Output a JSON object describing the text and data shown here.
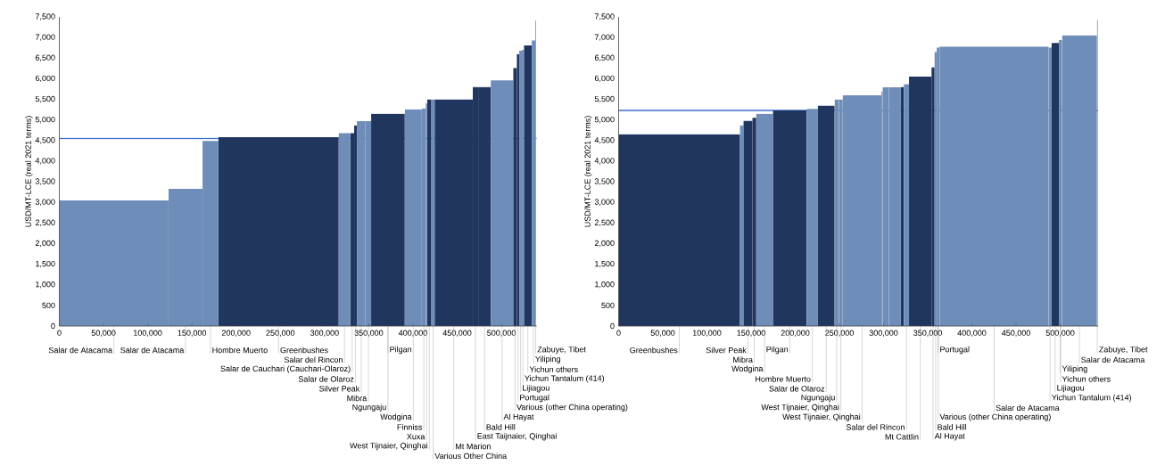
{
  "chart_data": [
    {
      "type": "bar",
      "ylabel": "USD/MT-LCE (real 2021 terms)",
      "x": [
        61750,
        142750,
        171000,
        248000,
        322500,
        331250,
        335050,
        341450,
        349500,
        371700,
        400350,
        412250,
        415250,
        418500,
        422800,
        446150,
        470750,
        480900,
        500700,
        515400,
        518800,
        521700,
        524350,
        529950,
        536400,
        538800
      ],
      "values": [
        3050,
        3330,
        4490,
        4580,
        4680,
        4680,
        4870,
        4970,
        4970,
        5150,
        5260,
        5280,
        5400,
        5500,
        5500,
        5500,
        5800,
        5800,
        5960,
        6260,
        6600,
        6680,
        6700,
        6810,
        6930,
        7410
      ],
      "colors": [
        "#6f8db9",
        "#6f8db9",
        "#6f8db9",
        "#20365f",
        "#6f8db9",
        "#20365f",
        "#20365f",
        "#6f8db9",
        "#6f8db9",
        "#20365f",
        "#6f8db9",
        "#6f8db9",
        "#6f8db9",
        "#20365f",
        "#6f8db9",
        "#20365f",
        "#20365f",
        "#20365f",
        "#6f8db9",
        "#20365f",
        "#20365f",
        "#6f8db9",
        "#6f8db9",
        "#20365f",
        "#6f8db9",
        "#6f8db9"
      ],
      "xlim": [
        0,
        540000
      ],
      "ylim": [
        0,
        7500
      ],
      "xticks": [
        0,
        {
          "value": 50000,
          "label": "50,000"
        },
        {
          "value": 100000,
          "label": "100,000"
        },
        {
          "value": 150000,
          "label": "150,000"
        },
        {
          "value": 200000,
          "label": "200,000"
        },
        {
          "value": 250000,
          "label": "250,000"
        },
        {
          "value": 300000,
          "label": "300,000"
        },
        {
          "value": 350000,
          "label": "350,000"
        },
        {
          "value": 400000,
          "label": "400,000"
        },
        {
          "value": 450000,
          "label": "450,000"
        },
        {
          "value": 500000,
          "label": "500,000"
        }
      ],
      "yticks": [
        0,
        500,
        {
          "value": 1000,
          "label": "1,000"
        },
        {
          "value": 1500,
          "label": "1,500"
        },
        {
          "value": 2000,
          "label": "2,000"
        },
        {
          "value": 2500,
          "label": "2,500"
        },
        {
          "value": 3000,
          "label": "3,000"
        },
        {
          "value": 3500,
          "label": "3,500"
        },
        {
          "value": 4000,
          "label": "4,000"
        },
        {
          "value": 4500,
          "label": "4,500"
        },
        {
          "value": 5000,
          "label": "5,000"
        },
        {
          "value": 5500,
          "label": "5,500"
        },
        {
          "value": 6000,
          "label": "6,000"
        },
        {
          "value": 6500,
          "label": "6,500"
        },
        {
          "value": 7000,
          "label": "7,000"
        },
        {
          "value": 7500,
          "label": "7,500"
        }
      ],
      "ref_lines": [
        {
          "axis": "y",
          "value": 4550,
          "color": "#3a6cc9"
        }
      ],
      "annotations": [
        {
          "text": "Salar de Atacama",
          "x": 61750,
          "y": 0
        },
        {
          "text": "Salar de Atacama",
          "x": 142750,
          "y": 0
        },
        {
          "text": "Hombre Muerto",
          "x": 171000,
          "y": 0
        },
        {
          "text": "Greenbushes",
          "x": 248000,
          "y": 0
        },
        {
          "text": "Salar del Rincon",
          "x": 322500,
          "y": 0
        },
        {
          "text": "Salar de Cauchari (Cauchari-Olaroz)",
          "x": 331250,
          "y": 0
        },
        {
          "text": "Salar de Olaroz",
          "x": 335050,
          "y": 0
        },
        {
          "text": "Silver Peak",
          "x": 341450,
          "y": 0
        },
        {
          "text": "Mibra",
          "x": 349500,
          "y": 0
        },
        {
          "text": "Pilgan",
          "x": 371700,
          "y": 0
        },
        {
          "text": "Ngungaju",
          "x": 371700,
          "y": 0
        },
        {
          "text": "Wodgina",
          "x": 400350,
          "y": 0
        },
        {
          "text": "Finniss",
          "x": 412250,
          "y": 0
        },
        {
          "text": "Xuxa",
          "x": 415250,
          "y": 0
        },
        {
          "text": "West Tijnaier, Qinghai",
          "x": 418500,
          "y": 0
        },
        {
          "text": "Various Other China",
          "x": 422800,
          "y": 0
        },
        {
          "text": "Mt Marion",
          "x": 446150,
          "y": 0
        },
        {
          "text": "East Taijnaier, Qinghai",
          "x": 470750,
          "y": 0
        },
        {
          "text": "Bald Hill",
          "x": 480900,
          "y": 0
        },
        {
          "text": "Al Hayat",
          "x": 500700,
          "y": 0
        },
        {
          "text": "Various (other China operating)",
          "x": 515400,
          "y": 0
        },
        {
          "text": "Portugal",
          "x": 518800,
          "y": 0
        },
        {
          "text": "Lijiagou",
          "x": 521700,
          "y": 0
        },
        {
          "text": "Yichun Tantalum (414)",
          "x": 524350,
          "y": 0
        },
        {
          "text": "Yichun others",
          "x": 529950,
          "y": 0
        },
        {
          "text": "Yiliping",
          "x": 536400,
          "y": 0
        },
        {
          "text": "Zabuye, Tibet",
          "x": 538800,
          "y": 0
        }
      ]
    },
    {
      "type": "bar",
      "ylabel": "USD/MT-LCE (real 2021 terms)",
      "x": [
        68700,
        139400,
        146450,
        153650,
        165250,
        193850,
        219300,
        235050,
        246950,
        251550,
        275650,
        298300,
        302500,
        312800,
        321300,
        325900,
        341550,
        356050,
        359000,
        361850,
        425150,
        488500,
        494350,
        500250,
        521750,
        542000
      ],
      "values": [
        4650,
        4870,
        4980,
        5050,
        5150,
        5230,
        5270,
        5350,
        5500,
        5500,
        5600,
        5690,
        5790,
        5790,
        5800,
        5870,
        6050,
        6280,
        6650,
        6760,
        6780,
        6760,
        6870,
        6940,
        7050,
        7430
      ],
      "colors": [
        "#20365f",
        "#6f8db9",
        "#20365f",
        "#20365f",
        "#6f8db9",
        "#20365f",
        "#6f8db9",
        "#20365f",
        "#6f8db9",
        "#6f8db9",
        "#6f8db9",
        "#6f8db9",
        "#6f8db9",
        "#6f8db9",
        "#20365f",
        "#6f8db9",
        "#20365f",
        "#20365f",
        "#6f8db9",
        "#6f8db9",
        "#6f8db9",
        "#6f8db9",
        "#20365f",
        "#6f8db9",
        "#6f8db9",
        "#6f8db9"
      ],
      "xlim": [
        0,
        543000
      ],
      "ylim": [
        0,
        7500
      ],
      "xticks": [
        0,
        {
          "value": 50000,
          "label": "50,000"
        },
        {
          "value": 100000,
          "label": "100,000"
        },
        {
          "value": 150000,
          "label": "150,000"
        },
        {
          "value": 200000,
          "label": "200,000"
        },
        {
          "value": 250000,
          "label": "250,000"
        },
        {
          "value": 300000,
          "label": "300,000"
        },
        {
          "value": 350000,
          "label": "350,000"
        },
        {
          "value": 400000,
          "label": "400,000"
        },
        {
          "value": 450000,
          "label": "450,000"
        },
        {
          "value": 500000,
          "label": "500,000"
        }
      ],
      "yticks": [
        0,
        500,
        {
          "value": 1000,
          "label": "1,000"
        },
        {
          "value": 1500,
          "label": "1,500"
        },
        {
          "value": 2000,
          "label": "2,000"
        },
        {
          "value": 2500,
          "label": "2,500"
        },
        {
          "value": 3000,
          "label": "3,000"
        },
        {
          "value": 3500,
          "label": "3,500"
        },
        {
          "value": 4000,
          "label": "4,000"
        },
        {
          "value": 4500,
          "label": "4,500"
        },
        {
          "value": 5000,
          "label": "5,000"
        },
        {
          "value": 5500,
          "label": "5,500"
        },
        {
          "value": 6000,
          "label": "6,000"
        },
        {
          "value": 6500,
          "label": "6,500"
        },
        {
          "value": 7000,
          "label": "7,000"
        },
        {
          "value": 7500,
          "label": "7,500"
        }
      ],
      "ref_lines": [
        {
          "axis": "y",
          "value": 5230,
          "color": "#3a6cc9"
        }
      ],
      "annotations": [
        {
          "text": "Greenbushes",
          "x": 68700,
          "y": 0
        },
        {
          "text": "Silver Peak",
          "x": 146450,
          "y": 0
        },
        {
          "text": "Mibra",
          "x": 153650,
          "y": 0
        },
        {
          "text": "Wodgina",
          "x": 165250,
          "y": 0
        },
        {
          "text": "Pilgan",
          "x": 193850,
          "y": 0
        },
        {
          "text": "Hombre Muerto",
          "x": 219300,
          "y": 0
        },
        {
          "text": "Salar de Olaroz",
          "x": 235050,
          "y": 0
        },
        {
          "text": "Ngungaju",
          "x": 246950,
          "y": 0
        },
        {
          "text": "West Tijnaier, Qinghai",
          "x": 251550,
          "y": 0
        },
        {
          "text": "West Tijnaier, Qinghai",
          "x": 275650,
          "y": 0
        },
        {
          "text": "Salar del Rincon",
          "x": 325900,
          "y": 0
        },
        {
          "text": "Mt Cattlin",
          "x": 341550,
          "y": 0
        },
        {
          "text": "Al Hayat",
          "x": 356050,
          "y": 0
        },
        {
          "text": "Bald Hill",
          "x": 359000,
          "y": 0
        },
        {
          "text": "Various (other China operating)",
          "x": 361850,
          "y": 0
        },
        {
          "text": "Portugal",
          "x": 361850,
          "y": 0
        },
        {
          "text": "Salar de Atacama",
          "x": 425150,
          "y": 0
        },
        {
          "text": "Yichun Tantalum (414)",
          "x": 488500,
          "y": 0
        },
        {
          "text": "Lijiagou",
          "x": 494350,
          "y": 0
        },
        {
          "text": "Yichun others",
          "x": 500250,
          "y": 0
        },
        {
          "text": "Yiliping",
          "x": 500250,
          "y": 0
        },
        {
          "text": "Salar de Atacama",
          "x": 521750,
          "y": 0
        },
        {
          "text": "Zabuye, Tibet",
          "x": 542000,
          "y": 0
        }
      ]
    }
  ]
}
